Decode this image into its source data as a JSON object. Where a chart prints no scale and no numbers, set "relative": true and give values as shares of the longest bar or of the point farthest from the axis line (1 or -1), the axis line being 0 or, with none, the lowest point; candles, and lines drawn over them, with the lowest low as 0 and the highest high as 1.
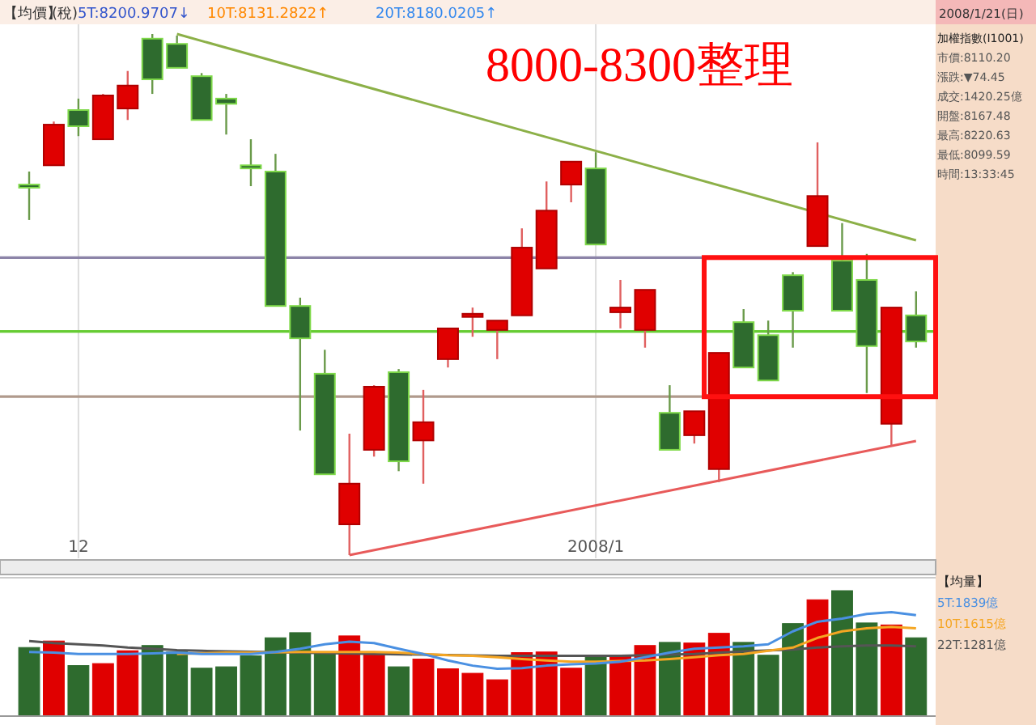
{
  "chart_data": [
    {
      "type": "candlestick",
      "title": "8000-8300整理",
      "relative": true,
      "grid": "x",
      "tick_labels": "x",
      "categories": [
        null,
        null,
        "12",
        null,
        null,
        null,
        null,
        null,
        null,
        null,
        null,
        null,
        null,
        null,
        null,
        null,
        null,
        null,
        null,
        null,
        null,
        null,
        null,
        "2008/1",
        null,
        null,
        null,
        null,
        null,
        null,
        null,
        null,
        null,
        null,
        null,
        null,
        null
      ],
      "ohlc": [
        [
          0.711,
          0.736,
          0.643,
          0.705
        ],
        [
          0.748,
          0.832,
          0.748,
          0.826
        ],
        [
          0.854,
          0.876,
          0.804,
          0.823
        ],
        [
          0.798,
          0.885,
          0.798,
          0.882
        ],
        [
          0.857,
          0.929,
          0.835,
          0.901
        ],
        [
          0.991,
          1.0,
          0.885,
          0.913
        ],
        [
          0.981,
          0.997,
          0.935,
          0.935
        ],
        [
          0.919,
          0.925,
          0.835,
          0.835
        ],
        [
          0.876,
          0.885,
          0.807,
          0.866
        ],
        [
          0.748,
          0.798,
          0.708,
          0.742
        ],
        [
          0.736,
          0.77,
          0.478,
          0.478
        ],
        [
          0.478,
          0.494,
          0.239,
          0.416
        ],
        [
          0.348,
          0.394,
          0.155,
          0.155
        ],
        [
          0.059,
          0.233,
          0.0,
          0.137
        ],
        [
          0.202,
          0.326,
          0.189,
          0.323
        ],
        [
          0.351,
          0.357,
          0.161,
          0.18
        ],
        [
          0.22,
          0.317,
          0.137,
          0.255
        ],
        [
          0.376,
          0.435,
          0.36,
          0.435
        ],
        [
          0.457,
          0.475,
          0.419,
          0.463
        ],
        [
          0.432,
          0.45,
          0.376,
          0.45
        ],
        [
          0.46,
          0.627,
          0.46,
          0.59
        ],
        [
          0.55,
          0.717,
          0.55,
          0.661
        ],
        [
          0.711,
          0.755,
          0.677,
          0.755
        ],
        [
          0.742,
          0.773,
          0.596,
          0.596
        ],
        [
          0.466,
          0.528,
          0.435,
          0.475
        ],
        [
          0.432,
          0.509,
          0.398,
          0.509
        ],
        [
          0.273,
          0.326,
          0.202,
          0.202
        ],
        [
          0.23,
          0.276,
          0.214,
          0.276
        ],
        [
          0.165,
          0.388,
          0.14,
          0.388
        ],
        [
          0.447,
          0.472,
          0.36,
          0.36
        ],
        [
          0.422,
          0.45,
          0.335,
          0.335
        ],
        [
          0.537,
          0.543,
          0.398,
          0.469
        ],
        [
          0.593,
          0.792,
          0.593,
          0.689
        ],
        [
          0.565,
          0.637,
          0.469,
          0.469
        ],
        [
          0.528,
          0.578,
          0.311,
          0.401
        ],
        [
          0.252,
          0.475,
          0.208,
          0.475
        ],
        [
          0.46,
          0.506,
          0.398,
          0.41
        ]
      ],
      "ref_lines": [
        {
          "axis": "y",
          "value": 0.571,
          "color": "#8c84a8"
        },
        {
          "axis": "y",
          "value": 0.429,
          "color": "#66cc33"
        },
        {
          "axis": "y",
          "value": 0.304,
          "color": "#b09a8c"
        }
      ],
      "series": [
        {
          "type": "line",
          "color": "#8cb048",
          "values": [
            null,
            null,
            null,
            null,
            null,
            null,
            1.0,
            null,
            null,
            null,
            null,
            null,
            null,
            null,
            null,
            null,
            null,
            null,
            null,
            null,
            null,
            null,
            null,
            null,
            null,
            null,
            null,
            null,
            null,
            null,
            null,
            null,
            null,
            null,
            null,
            null,
            0.604
          ]
        },
        {
          "type": "line",
          "color": "#e85a5a",
          "values": [
            null,
            null,
            null,
            null,
            null,
            null,
            null,
            null,
            null,
            null,
            null,
            null,
            null,
            0.0,
            null,
            null,
            null,
            null,
            null,
            null,
            null,
            null,
            null,
            null,
            null,
            null,
            null,
            null,
            null,
            null,
            null,
            null,
            null,
            null,
            null,
            null,
            0.219
          ]
        }
      ],
      "annotations": [
        "【均價】",
        "(稅)",
        "5T:8200.9707↓",
        "10T:8131.2822↑",
        "20T:8180.0205↑",
        "2008/1/21(日)",
        "加權指數(I1001)",
        "市價:8110.20",
        "漲跌:▼74.45",
        "成交:1420.25億",
        "開盤:8167.48",
        "最高:8220.63",
        "最低:8099.59",
        "時間:13:33:45"
      ]
    },
    {
      "type": "bar",
      "relative": true,
      "tick_labels": false,
      "categories": [
        null,
        null,
        null,
        null,
        null,
        null,
        null,
        null,
        null,
        null,
        null,
        null,
        null,
        null,
        null,
        null,
        null,
        null,
        null,
        null,
        null,
        null,
        null,
        null,
        null,
        null,
        null,
        null,
        null,
        null,
        null,
        null,
        null,
        null,
        null,
        null,
        null
      ],
      "values": [
        0.544,
        0.596,
        0.399,
        0.415,
        0.518,
        0.56,
        0.508,
        0.378,
        0.389,
        0.477,
        0.622,
        0.663,
        0.503,
        0.637,
        0.503,
        0.389,
        0.451,
        0.373,
        0.337,
        0.285,
        0.503,
        0.508,
        0.378,
        0.482,
        0.482,
        0.56,
        0.585,
        0.58,
        0.658,
        0.585,
        0.482,
        0.736,
        0.927,
        1.0,
        0.741,
        0.725,
        0.622
      ],
      "colors": [
        "#2e6b2e",
        "#e00000",
        "#2e6b2e",
        "#e00000",
        "#e00000",
        "#2e6b2e",
        "#2e6b2e",
        "#2e6b2e",
        "#2e6b2e",
        "#2e6b2e",
        "#2e6b2e",
        "#2e6b2e",
        "#2e6b2e",
        "#e00000",
        "#e00000",
        "#2e6b2e",
        "#e00000",
        "#e00000",
        "#e00000",
        "#e00000",
        "#e00000",
        "#e00000",
        "#e00000",
        "#2e6b2e",
        "#e00000",
        "#e00000",
        "#2e6b2e",
        "#e00000",
        "#e00000",
        "#2e6b2e",
        "#2e6b2e",
        "#2e6b2e",
        "#e00000",
        "#2e6b2e",
        "#2e6b2e",
        "#e00000",
        "#2e6b2e"
      ]
    },
    {
      "type": "line",
      "relative": true,
      "tick_labels": false,
      "annotations": [
        "【均量】"
      ],
      "categories": [
        null,
        null,
        null,
        null,
        null,
        null,
        null,
        null,
        null,
        null,
        null,
        null,
        null,
        null,
        null,
        null,
        null,
        null,
        null,
        null,
        null,
        null,
        null,
        null,
        null,
        null,
        null,
        null,
        null,
        null,
        null,
        null,
        null,
        null,
        null,
        null,
        null
      ],
      "series": [
        {
          "name": "5T:1839億",
          "color": "#4a90e2",
          "values": [
            0.613,
            0.607,
            0.593,
            0.593,
            0.593,
            0.6,
            0.607,
            0.593,
            0.593,
            0.593,
            0.613,
            0.644,
            0.688,
            0.713,
            0.7,
            0.644,
            0.593,
            0.531,
            0.481,
            0.45,
            0.456,
            0.481,
            0.493,
            0.501,
            0.519,
            0.562,
            0.607,
            0.644,
            0.656,
            0.668,
            0.688,
            0.813,
            0.906,
            0.937,
            0.981,
            1.0,
            0.969
          ]
        },
        {
          "name": "10T:1615億",
          "color": "#f5a623",
          "values": [
            null,
            null,
            null,
            null,
            null,
            null,
            0.593,
            null,
            0.607,
            0.607,
            null,
            0.613,
            0.613,
            0.613,
            0.613,
            0.607,
            null,
            0.581,
            0.575,
            0.562,
            0.544,
            0.531,
            0.519,
            0.519,
            null,
            0.531,
            0.544,
            0.562,
            0.581,
            0.593,
            0.625,
            0.656,
            0.75,
            0.813,
            0.843,
            0.856,
            0.843
          ]
        },
        {
          "name": "22T:1281億",
          "color": "#555555",
          "values": [
            0.719,
            0.7,
            0.688,
            0.676,
            0.656,
            0.644,
            0.631,
            0.625,
            0.619,
            null,
            null,
            null,
            null,
            null,
            null,
            null,
            null,
            null,
            null,
            0.575,
            0.575,
            0.575,
            0.575,
            0.575,
            0.575,
            0.581,
            0.587,
            0.593,
            0.607,
            0.619,
            null,
            0.637,
            0.656,
            0.668,
            0.676,
            0.676,
            0.668
          ]
        }
      ]
    }
  ]
}
